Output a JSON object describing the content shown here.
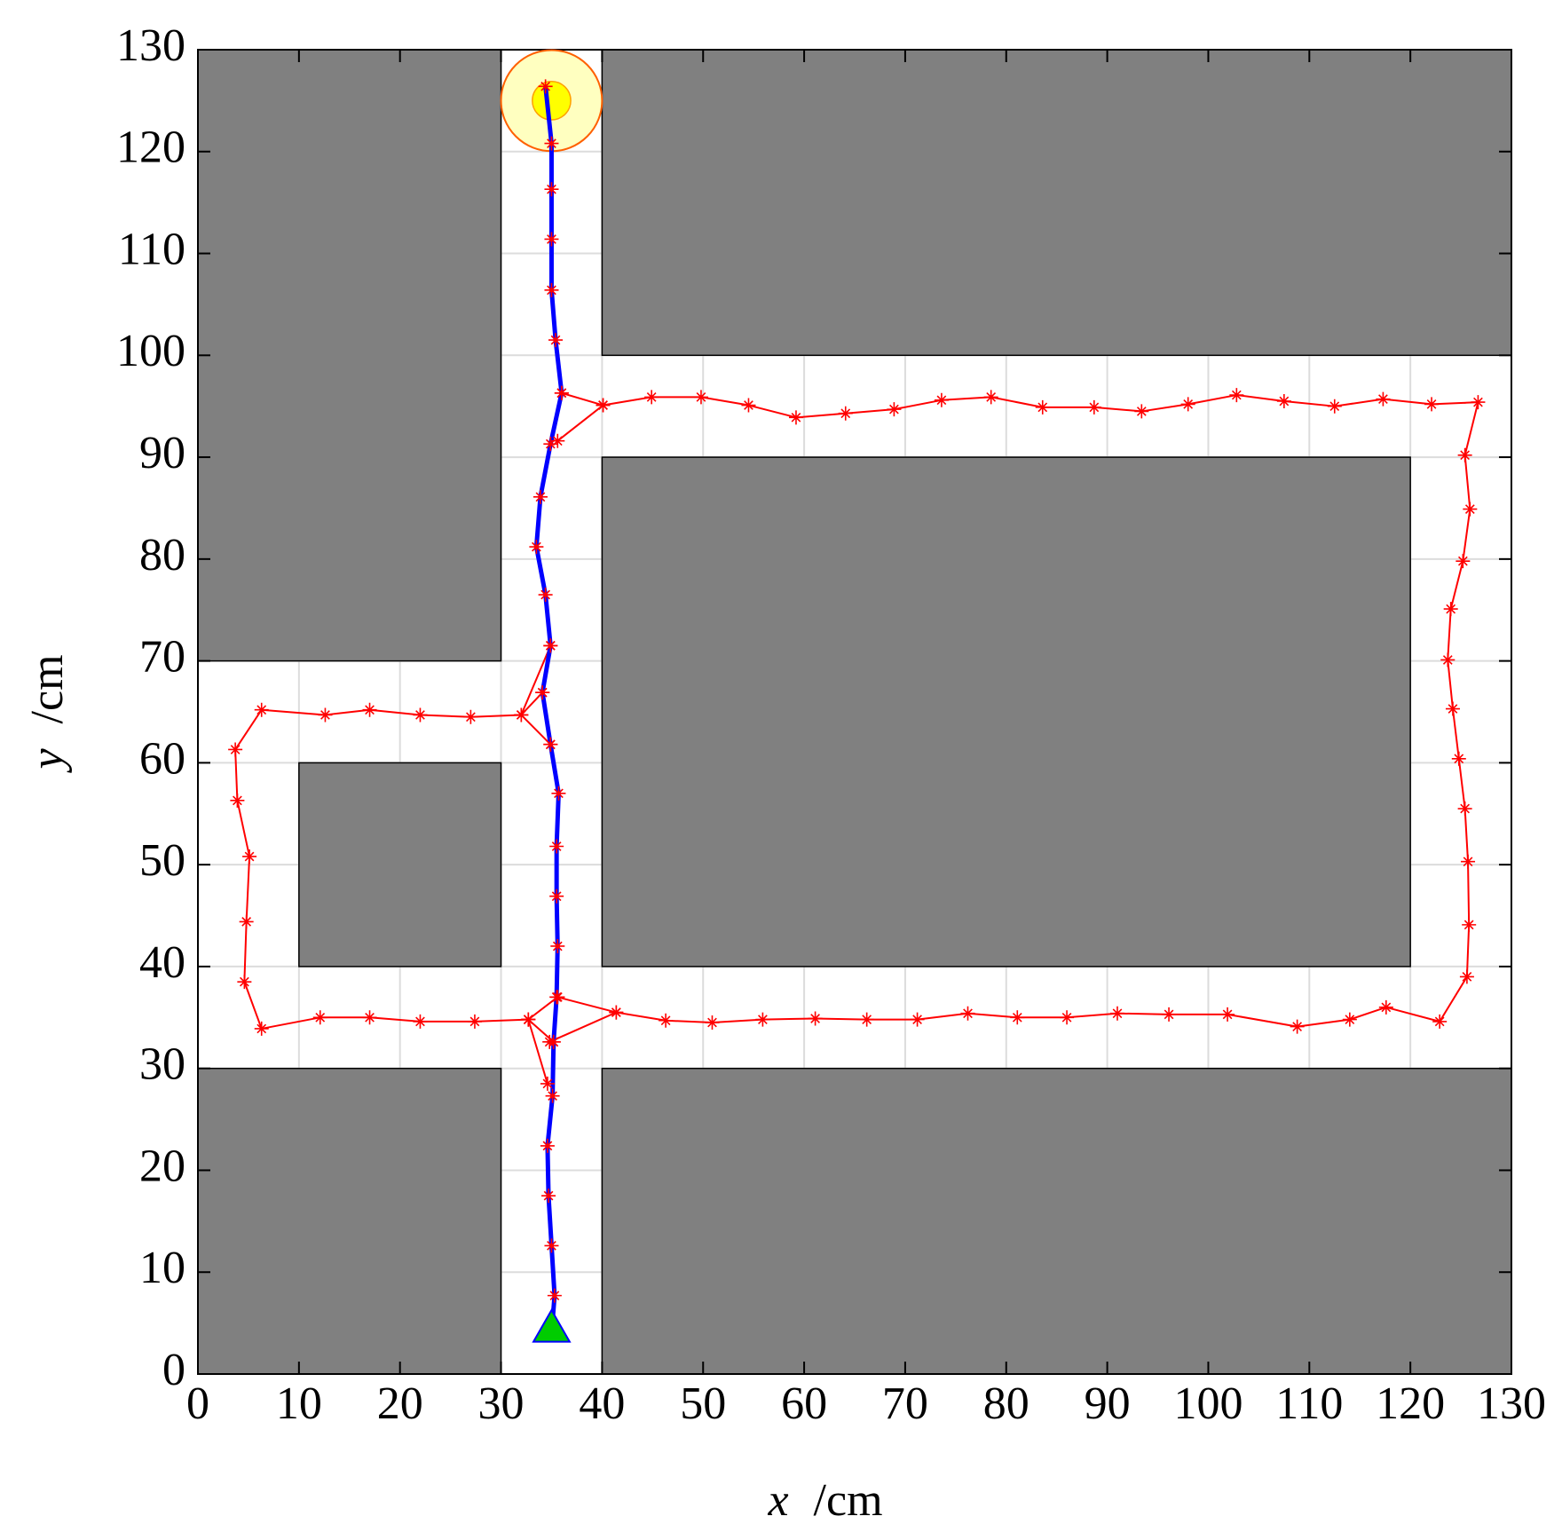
{
  "chart_data": {
    "type": "path-map",
    "xlabel": {
      "symbol": "x",
      "unit": "/cm"
    },
    "ylabel": {
      "symbol": "y",
      "unit": "/cm"
    },
    "xlim": [
      0,
      130
    ],
    "ylim": [
      0,
      130
    ],
    "xticks": [
      0,
      10,
      20,
      30,
      40,
      50,
      60,
      70,
      80,
      90,
      100,
      110,
      120,
      130
    ],
    "yticks": [
      0,
      10,
      20,
      30,
      40,
      50,
      60,
      70,
      80,
      90,
      100,
      110,
      120,
      130
    ],
    "grid": true,
    "obstacle_color": "#808080",
    "obstacles": [
      [
        0,
        70,
        30,
        130
      ],
      [
        40,
        100,
        130,
        130
      ],
      [
        40,
        40,
        120,
        90
      ],
      [
        10,
        40,
        30,
        60
      ],
      [
        0,
        0,
        30,
        30
      ],
      [
        40,
        0,
        130,
        30
      ]
    ],
    "series": [
      {
        "color": "#ff0000",
        "line_width": 2,
        "x": [
          35.6,
          40.1,
          44.9,
          49.8,
          54.5,
          59.2,
          64.1,
          68.9,
          73.6,
          78.5,
          83.6,
          88.7,
          93.4,
          98,
          102.8,
          107.5,
          112.5,
          117.3,
          122.1,
          126.7,
          125.4,
          125.9,
          125.2,
          124,
          123.7,
          124.2,
          124.8,
          125.4,
          125.7,
          125.8,
          125.6,
          122.9,
          117.6,
          114,
          108.8,
          101.9,
          96.1,
          91,
          86,
          81.1,
          76.2,
          71.2,
          66.2,
          61.1,
          55.9,
          50.9,
          46.3,
          41.4,
          35.6,
          null,
          36,
          40.1,
          null,
          41.4,
          34.8,
          null,
          34.9,
          32,
          27,
          22,
          17,
          12.6,
          6.3,
          3.7,
          3.9,
          5.1,
          4.8,
          4.6,
          6.3,
          12.1,
          17,
          22,
          27.4,
          32.7,
          35.6,
          null,
          34.9,
          32,
          34.1,
          null,
          32.7,
          35.2,
          null,
          32.7,
          34.6
        ],
        "y": [
          91.6,
          95.1,
          95.9,
          95.9,
          95.1,
          93.9,
          94.3,
          94.7,
          95.6,
          95.9,
          94.9,
          94.9,
          94.5,
          95.2,
          96.1,
          95.5,
          95,
          95.7,
          95.2,
          95.4,
          90.2,
          84.9,
          79.8,
          75.1,
          70.1,
          65.3,
          60.4,
          55.5,
          50.3,
          44.1,
          39,
          34.6,
          36,
          34.8,
          34.1,
          35.3,
          35.3,
          35.4,
          35,
          35,
          35.4,
          34.8,
          34.8,
          34.9,
          34.8,
          34.5,
          34.7,
          35.5,
          37,
          null,
          96.3,
          95.1,
          null,
          35.5,
          32.6,
          null,
          61.8,
          64.7,
          64.5,
          64.7,
          65.2,
          64.7,
          65.2,
          61.3,
          56.3,
          50.8,
          44.4,
          38.5,
          33.9,
          35,
          35,
          34.6,
          34.6,
          34.8,
          37,
          null,
          71.5,
          64.7,
          66.9,
          null,
          34.8,
          32.6,
          null,
          34.8,
          28.5
        ]
      },
      {
        "color": "#0000ff",
        "line_width": 5,
        "x": [
          34.4,
          35,
          35,
          35,
          35,
          35.4,
          36,
          34.9,
          33.9,
          33.5,
          34.4,
          34.9,
          34.1,
          34.9,
          35.7,
          35.5,
          35.5,
          35.6,
          35.5,
          35.2,
          35.1,
          34.6,
          34.7,
          35,
          35.3,
          35
        ],
        "y": [
          126.4,
          120.8,
          116.3,
          111.4,
          106.4,
          101.5,
          96.3,
          91.3,
          86.1,
          81.2,
          76.5,
          71.5,
          66.9,
          61.8,
          57,
          51.8,
          46.9,
          42,
          37,
          32.6,
          27.3,
          22.4,
          17.5,
          12.6,
          7.7,
          3.9
        ]
      }
    ],
    "marker_color": "#ff0000",
    "start": {
      "x": 35,
      "y": 4.5,
      "color": "#00cc00"
    },
    "goal": {
      "x": 35,
      "y": 125,
      "radius": 5,
      "color": "#ffffc0"
    }
  }
}
